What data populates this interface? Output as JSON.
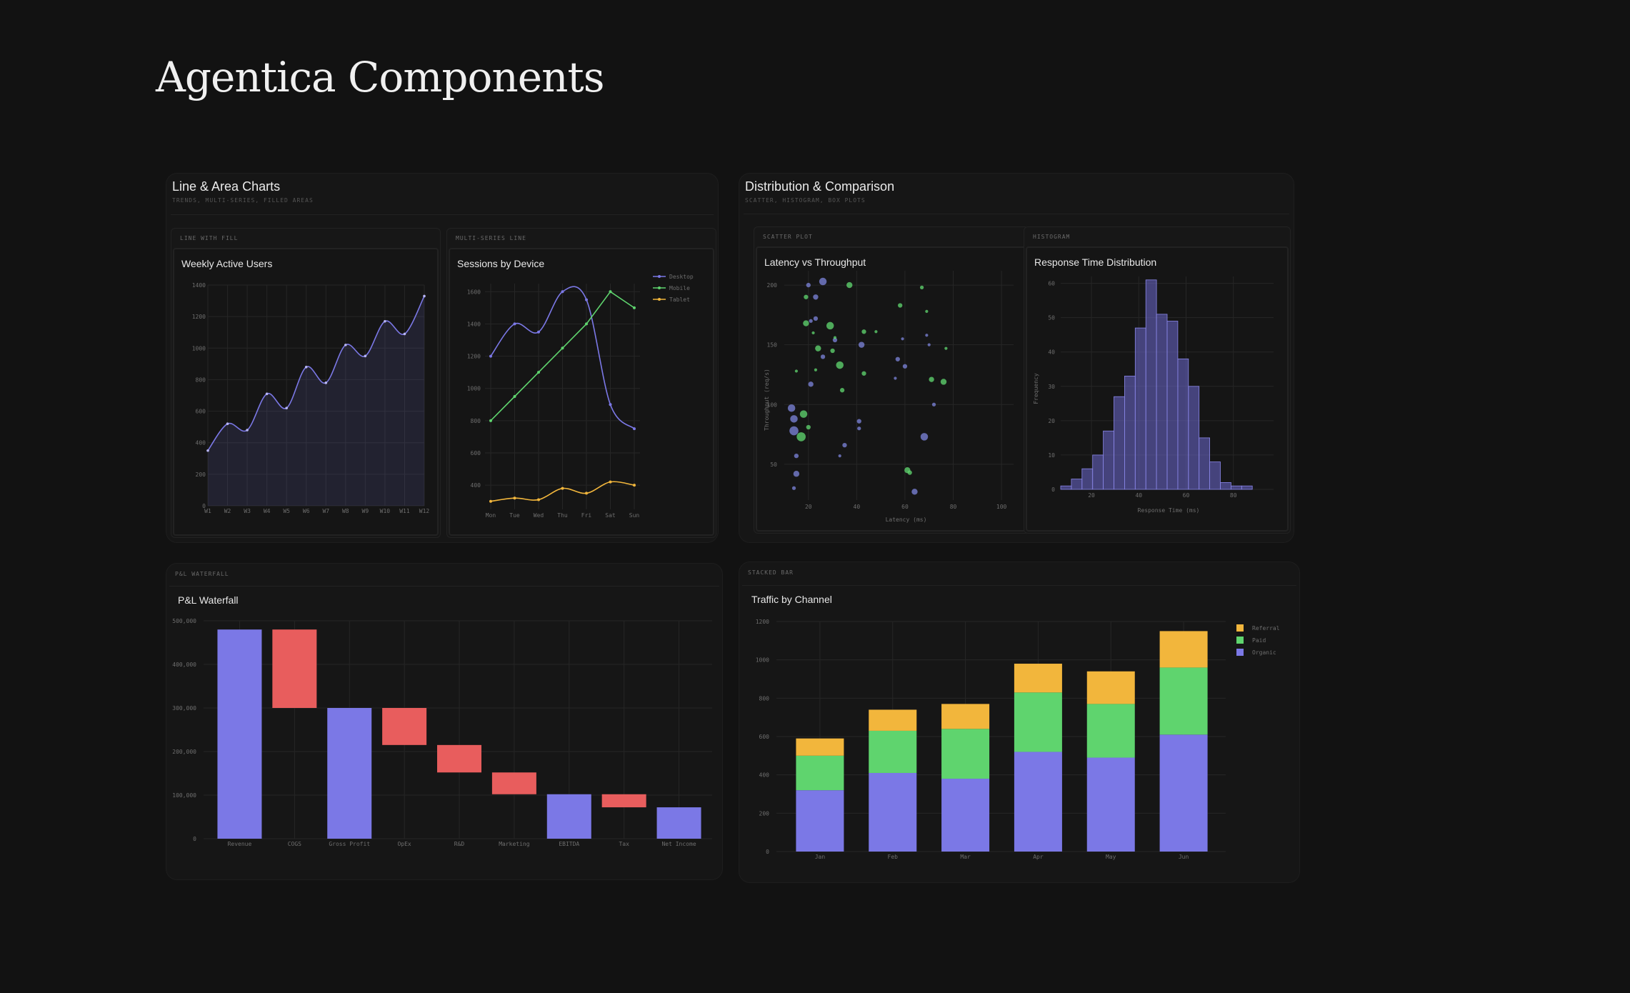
{
  "page": {
    "title": "Agentica Components"
  },
  "sections": {
    "line_area": {
      "title": "Line & Area Charts",
      "subtitle": "TRENDS, MULTI-SERIES, FILLED AREAS",
      "card1_tag": "LINE WITH FILL",
      "card2_tag": "MULTI-SERIES LINE"
    },
    "distribution": {
      "title": "Distribution & Comparison",
      "subtitle": "SCATTER, HISTOGRAM, BOX PLOTS",
      "card1_tag": "SCATTER PLOT",
      "card2_tag": "HISTOGRAM"
    },
    "waterfall": {
      "card_tag": "P&L WATERFALL"
    },
    "stacked": {
      "card_tag": "STACKED BAR"
    }
  },
  "colors": {
    "purple": "#7b78e6",
    "green": "#5fd46e",
    "yellow": "#f2b63c",
    "red": "#e85d5d",
    "blue": "#7a82d6"
  },
  "chart_data": [
    {
      "id": "wau",
      "type": "area",
      "title": "Weekly Active Users",
      "categories": [
        "W1",
        "W2",
        "W3",
        "W4",
        "W5",
        "W6",
        "W7",
        "W8",
        "W9",
        "W10",
        "W11",
        "W12"
      ],
      "values": [
        350,
        520,
        480,
        710,
        620,
        880,
        780,
        1020,
        950,
        1170,
        1090,
        1330
      ],
      "ylim": [
        0,
        1400
      ],
      "yticks": [
        0,
        200,
        400,
        600,
        800,
        1000,
        1200,
        1400
      ],
      "xlabel": "",
      "ylabel": ""
    },
    {
      "id": "sessions",
      "type": "line",
      "title": "Sessions by Device",
      "categories": [
        "Mon",
        "Tue",
        "Wed",
        "Thu",
        "Fri",
        "Sat",
        "Sun"
      ],
      "series": [
        {
          "name": "Desktop",
          "values": [
            1200,
            1400,
            1350,
            1600,
            1550,
            900,
            750
          ]
        },
        {
          "name": "Mobile",
          "values": [
            800,
            950,
            1100,
            1250,
            1400,
            1600,
            1500
          ]
        },
        {
          "name": "Tablet",
          "values": [
            300,
            320,
            310,
            380,
            350,
            420,
            400
          ]
        }
      ],
      "ylim": [
        250,
        1650
      ],
      "yticks": [
        400,
        600,
        800,
        1000,
        1200,
        1400,
        1600
      ]
    },
    {
      "id": "scatter",
      "type": "scatter",
      "title": "Latency vs Throughput",
      "xlabel": "Latency (ms)",
      "ylabel": "Throughput (req/s)",
      "xlim": [
        10,
        105
      ],
      "ylim": [
        20,
        212
      ],
      "xticks": [
        20,
        40,
        60,
        80,
        100
      ],
      "yticks": [
        50,
        100,
        150,
        200
      ],
      "points": [
        {
          "x": 13,
          "y": 97,
          "s": 5,
          "g": 0
        },
        {
          "x": 14,
          "y": 88,
          "s": 5,
          "g": 0
        },
        {
          "x": 14,
          "y": 78,
          "s": 6,
          "g": 0
        },
        {
          "x": 15,
          "y": 57,
          "s": 3,
          "g": 0
        },
        {
          "x": 15,
          "y": 42,
          "s": 4,
          "g": 0
        },
        {
          "x": 14,
          "y": 30,
          "s": 2.5,
          "g": 0
        },
        {
          "x": 17,
          "y": 73,
          "s": 6,
          "g": 1
        },
        {
          "x": 18,
          "y": 92,
          "s": 5,
          "g": 1
        },
        {
          "x": 19,
          "y": 168,
          "s": 4,
          "g": 1
        },
        {
          "x": 19,
          "y": 190,
          "s": 3,
          "g": 1
        },
        {
          "x": 20,
          "y": 81,
          "s": 3,
          "g": 1
        },
        {
          "x": 21,
          "y": 117,
          "s": 3.5,
          "g": 0
        },
        {
          "x": 21,
          "y": 170,
          "s": 2.5,
          "g": 0
        },
        {
          "x": 23,
          "y": 129,
          "s": 2,
          "g": 1
        },
        {
          "x": 23,
          "y": 172,
          "s": 3,
          "g": 0
        },
        {
          "x": 24,
          "y": 147,
          "s": 4,
          "g": 1
        },
        {
          "x": 26,
          "y": 140,
          "s": 3,
          "g": 0
        },
        {
          "x": 20,
          "y": 200,
          "s": 3,
          "g": 0
        },
        {
          "x": 22,
          "y": 160,
          "s": 2,
          "g": 1
        },
        {
          "x": 23,
          "y": 190,
          "s": 3.5,
          "g": 0
        },
        {
          "x": 26,
          "y": 203,
          "s": 5,
          "g": 0
        },
        {
          "x": 29,
          "y": 166,
          "s": 5,
          "g": 1
        },
        {
          "x": 30,
          "y": 145,
          "s": 3,
          "g": 1
        },
        {
          "x": 31,
          "y": 154,
          "s": 3,
          "g": 0
        },
        {
          "x": 31,
          "y": 156,
          "s": 2,
          "g": 1
        },
        {
          "x": 33,
          "y": 133,
          "s": 5,
          "g": 1
        },
        {
          "x": 34,
          "y": 112,
          "s": 3,
          "g": 1
        },
        {
          "x": 35,
          "y": 66,
          "s": 3,
          "g": 0
        },
        {
          "x": 33,
          "y": 57,
          "s": 2,
          "g": 0
        },
        {
          "x": 37,
          "y": 200,
          "s": 4,
          "g": 1
        },
        {
          "x": 15,
          "y": 128,
          "s": 2,
          "g": 1
        },
        {
          "x": 41,
          "y": 86,
          "s": 3,
          "g": 0
        },
        {
          "x": 41,
          "y": 80,
          "s": 2.5,
          "g": 0
        },
        {
          "x": 43,
          "y": 161,
          "s": 3,
          "g": 1
        },
        {
          "x": 42,
          "y": 150,
          "s": 4,
          "g": 0
        },
        {
          "x": 43,
          "y": 126,
          "s": 3,
          "g": 1
        },
        {
          "x": 48,
          "y": 161,
          "s": 2,
          "g": 1
        },
        {
          "x": 58,
          "y": 183,
          "s": 3,
          "g": 1
        },
        {
          "x": 57,
          "y": 138,
          "s": 3,
          "g": 0
        },
        {
          "x": 56,
          "y": 122,
          "s": 2,
          "g": 0
        },
        {
          "x": 59,
          "y": 155,
          "s": 2,
          "g": 0
        },
        {
          "x": 60,
          "y": 132,
          "s": 3,
          "g": 0
        },
        {
          "x": 61,
          "y": 45,
          "s": 4,
          "g": 1
        },
        {
          "x": 62,
          "y": 43,
          "s": 3,
          "g": 1
        },
        {
          "x": 64,
          "y": 27,
          "s": 4,
          "g": 0
        },
        {
          "x": 67,
          "y": 198,
          "s": 2.5,
          "g": 1
        },
        {
          "x": 69,
          "y": 178,
          "s": 2,
          "g": 1
        },
        {
          "x": 70,
          "y": 150,
          "s": 2,
          "g": 0
        },
        {
          "x": 71,
          "y": 121,
          "s": 3.5,
          "g": 1
        },
        {
          "x": 72,
          "y": 100,
          "s": 2.5,
          "g": 0
        },
        {
          "x": 68,
          "y": 73,
          "s": 5,
          "g": 0
        },
        {
          "x": 77,
          "y": 147,
          "s": 2,
          "g": 1
        },
        {
          "x": 76,
          "y": 119,
          "s": 4,
          "g": 1
        },
        {
          "x": 69,
          "y": 158,
          "s": 2,
          "g": 0
        }
      ]
    },
    {
      "id": "histogram",
      "type": "bar",
      "title": "Response Time Distribution",
      "xlabel": "Response Time (ms)",
      "ylabel": "Frequency",
      "xlim": [
        7,
        97
      ],
      "ylim": [
        0,
        62
      ],
      "xticks": [
        20,
        40,
        60,
        80
      ],
      "yticks": [
        0,
        10,
        20,
        30,
        40,
        50,
        60
      ],
      "bin_start": 7,
      "bin_width": 4.5,
      "values": [
        1,
        3,
        6,
        10,
        17,
        27,
        33,
        47,
        61,
        51,
        49,
        38,
        30,
        15,
        8,
        2,
        1,
        1
      ]
    },
    {
      "id": "waterfall",
      "type": "bar",
      "subtype": "waterfall",
      "title": "P&L Waterfall",
      "categories": [
        "Revenue",
        "COGS",
        "Gross Profit",
        "OpEx",
        "R&D",
        "Marketing",
        "EBITDA",
        "Tax",
        "Net Income"
      ],
      "bars": [
        {
          "start": 0,
          "end": 480000,
          "kind": "total"
        },
        {
          "start": 300000,
          "end": 480000,
          "kind": "decrease"
        },
        {
          "start": 0,
          "end": 300000,
          "kind": "total"
        },
        {
          "start": 215000,
          "end": 300000,
          "kind": "decrease"
        },
        {
          "start": 152000,
          "end": 215000,
          "kind": "decrease"
        },
        {
          "start": 102000,
          "end": 152000,
          "kind": "decrease"
        },
        {
          "start": 0,
          "end": 102000,
          "kind": "total"
        },
        {
          "start": 72000,
          "end": 102000,
          "kind": "decrease"
        },
        {
          "start": 0,
          "end": 72000,
          "kind": "total"
        }
      ],
      "ylim": [
        0,
        500000
      ],
      "yticks": [
        0,
        100000,
        200000,
        300000,
        400000,
        500000
      ],
      "ytick_labels": [
        "0",
        "100,000",
        "200,000",
        "300,000",
        "400,000",
        "500,000"
      ]
    },
    {
      "id": "stacked",
      "type": "bar",
      "subtype": "stacked",
      "title": "Traffic by Channel",
      "categories": [
        "Jan",
        "Feb",
        "Mar",
        "Apr",
        "May",
        "Jun"
      ],
      "series": [
        {
          "name": "Organic",
          "values": [
            320,
            410,
            380,
            520,
            490,
            610
          ]
        },
        {
          "name": "Paid",
          "values": [
            180,
            220,
            260,
            310,
            280,
            350
          ]
        },
        {
          "name": "Referral",
          "values": [
            90,
            110,
            130,
            150,
            170,
            190
          ]
        }
      ],
      "legend_order": [
        "Referral",
        "Paid",
        "Organic"
      ],
      "ylim": [
        0,
        1200
      ],
      "yticks": [
        0,
        200,
        400,
        600,
        800,
        1000,
        1200
      ]
    }
  ]
}
